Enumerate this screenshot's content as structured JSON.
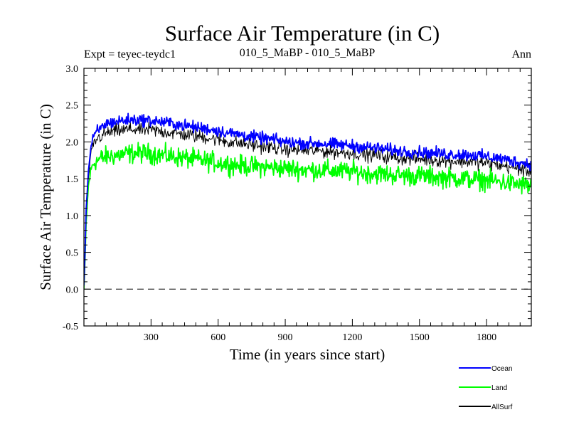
{
  "chart_data": {
    "type": "line",
    "title": "Surface Air Temperature (in C)",
    "left_label": "Expt = teyec-teydc1",
    "center_label": "010_5_MaBP - 010_5_MaBP",
    "right_label": "Ann",
    "xlabel": "Time (in years since start)",
    "ylabel": "Surface Air Temperature (in C)",
    "xlim": [
      0,
      2000
    ],
    "ylim": [
      -0.5,
      3.0
    ],
    "xticks": [
      300,
      600,
      900,
      1200,
      1500,
      1800
    ],
    "xtick_labels": [
      "300",
      "600",
      "900",
      "1200",
      "1500",
      "1800"
    ],
    "yticks": [
      -0.5,
      0.0,
      0.5,
      1.0,
      1.5,
      2.0,
      2.5,
      3.0
    ],
    "ytick_labels": [
      "-0.5",
      "0.0",
      "0.5",
      "1.0",
      "1.5",
      "2.0",
      "2.5",
      "3.0"
    ],
    "reference_line": {
      "y": 0.0,
      "style": "dashed"
    },
    "series": [
      {
        "name": "Ocean",
        "color": "#0000ff",
        "x": [
          0,
          5,
          10,
          20,
          30,
          40,
          60,
          80,
          100,
          150,
          200,
          250,
          300,
          350,
          400,
          450,
          500,
          550,
          600,
          650,
          700,
          750,
          800,
          850,
          900,
          950,
          1000,
          1050,
          1100,
          1150,
          1200,
          1250,
          1300,
          1350,
          1400,
          1450,
          1500,
          1550,
          1600,
          1650,
          1700,
          1750,
          1800,
          1850,
          1900,
          1950,
          2000
        ],
        "values": [
          0.05,
          0.5,
          1.1,
          1.6,
          1.9,
          2.05,
          2.15,
          2.2,
          2.25,
          2.28,
          2.3,
          2.3,
          2.29,
          2.27,
          2.25,
          2.22,
          2.2,
          2.18,
          2.15,
          2.12,
          2.1,
          2.07,
          2.05,
          2.03,
          2.0,
          1.99,
          1.98,
          1.98,
          1.97,
          1.96,
          1.95,
          1.93,
          1.92,
          1.9,
          1.88,
          1.87,
          1.86,
          1.85,
          1.84,
          1.83,
          1.83,
          1.82,
          1.8,
          1.78,
          1.75,
          1.72,
          1.7
        ],
        "amplitude": 0.12
      },
      {
        "name": "Land",
        "color": "#00ff00",
        "x": [
          0,
          5,
          10,
          20,
          30,
          40,
          60,
          80,
          100,
          150,
          200,
          250,
          300,
          350,
          400,
          450,
          500,
          550,
          600,
          650,
          700,
          750,
          800,
          850,
          900,
          950,
          1000,
          1050,
          1100,
          1150,
          1200,
          1250,
          1300,
          1350,
          1400,
          1450,
          1500,
          1550,
          1600,
          1650,
          1700,
          1750,
          1800,
          1850,
          1900,
          1950,
          2000
        ],
        "values": [
          0.0,
          0.4,
          0.9,
          1.4,
          1.6,
          1.7,
          1.75,
          1.78,
          1.8,
          1.82,
          1.84,
          1.85,
          1.84,
          1.82,
          1.8,
          1.78,
          1.76,
          1.74,
          1.72,
          1.7,
          1.68,
          1.67,
          1.66,
          1.65,
          1.64,
          1.63,
          1.62,
          1.62,
          1.61,
          1.6,
          1.6,
          1.58,
          1.57,
          1.56,
          1.55,
          1.54,
          1.54,
          1.53,
          1.52,
          1.51,
          1.5,
          1.49,
          1.48,
          1.46,
          1.44,
          1.42,
          1.4
        ],
        "amplitude": 0.2
      },
      {
        "name": "AllSurf",
        "color": "#000000",
        "x": [
          0,
          5,
          10,
          20,
          30,
          40,
          60,
          80,
          100,
          150,
          200,
          250,
          300,
          350,
          400,
          450,
          500,
          550,
          600,
          650,
          700,
          750,
          800,
          850,
          900,
          950,
          1000,
          1050,
          1100,
          1150,
          1200,
          1250,
          1300,
          1350,
          1400,
          1450,
          1500,
          1550,
          1600,
          1650,
          1700,
          1750,
          1800,
          1850,
          1900,
          1950,
          2000
        ],
        "values": [
          0.03,
          0.45,
          1.0,
          1.5,
          1.8,
          1.95,
          2.05,
          2.08,
          2.12,
          2.15,
          2.17,
          2.17,
          2.16,
          2.14,
          2.12,
          2.1,
          2.08,
          2.06,
          2.03,
          2.0,
          1.98,
          1.96,
          1.94,
          1.92,
          1.9,
          1.89,
          1.88,
          1.88,
          1.87,
          1.86,
          1.85,
          1.83,
          1.82,
          1.8,
          1.79,
          1.78,
          1.77,
          1.76,
          1.75,
          1.74,
          1.74,
          1.73,
          1.71,
          1.69,
          1.66,
          1.63,
          1.6
        ],
        "amplitude": 0.14
      }
    ],
    "legend": [
      "Ocean",
      "Land",
      "AllSurf"
    ],
    "legend_position": "bottom-right"
  }
}
